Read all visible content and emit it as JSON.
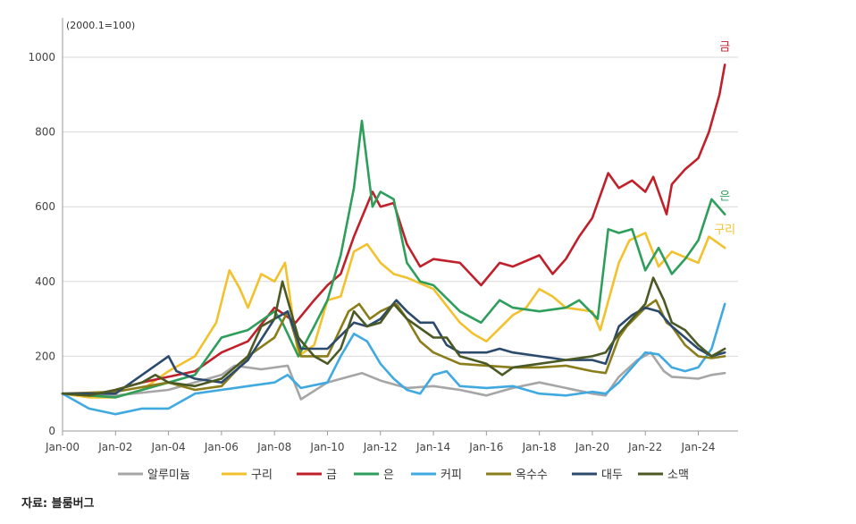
{
  "chart_data": {
    "type": "line",
    "unit_label": "(2000.1=100)",
    "ylim": [
      0,
      1000
    ],
    "xlim": [
      2000.0,
      2025.5
    ],
    "yticks": [
      "0",
      "200",
      "400",
      "600",
      "800",
      "1000"
    ],
    "ytick_values": [
      0,
      200,
      400,
      600,
      800,
      1000
    ],
    "xticks": [
      "Jan-00",
      "Jan-02",
      "Jan-04",
      "Jan-06",
      "Jan-08",
      "Jan-10",
      "Jan-12",
      "Jan-14",
      "Jan-16",
      "Jan-18",
      "Jan-20",
      "Jan-22",
      "Jan-24"
    ],
    "xtick_values": [
      2000,
      2002,
      2004,
      2006,
      2008,
      2010,
      2012,
      2014,
      2016,
      2018,
      2020,
      2022,
      2024
    ],
    "grid": "horizontal",
    "legend_position": "bottom",
    "series": [
      {
        "name": "알루미늄",
        "color": "#a6a6a6",
        "x": [
          2000,
          2002,
          2004,
          2006,
          2006.5,
          2007.5,
          2008.5,
          2009,
          2010,
          2011.3,
          2012,
          2013,
          2014,
          2015,
          2016,
          2017,
          2018,
          2019,
          2020,
          2020.5,
          2021,
          2021.7,
          2022.2,
          2022.7,
          2023,
          2024,
          2024.5,
          2025
        ],
        "y": [
          100,
          95,
          110,
          150,
          175,
          165,
          175,
          85,
          130,
          155,
          135,
          115,
          120,
          110,
          95,
          115,
          130,
          115,
          100,
          95,
          145,
          190,
          210,
          160,
          145,
          140,
          150,
          155
        ]
      },
      {
        "name": "구리",
        "color": "#f2c12e",
        "x": [
          2000,
          2001,
          2002,
          2003,
          2004,
          2005,
          2005.8,
          2006.3,
          2006.7,
          2007,
          2007.5,
          2008,
          2008.4,
          2008.9,
          2009.5,
          2010,
          2010.5,
          2011,
          2011.5,
          2012,
          2012.5,
          2013,
          2014,
          2015,
          2015.5,
          2016,
          2017,
          2017.5,
          2018,
          2018.5,
          2019,
          2020,
          2020.3,
          2021,
          2021.4,
          2022,
          2022.5,
          2023,
          2024,
          2024.4,
          2025
        ],
        "y": [
          100,
          90,
          90,
          110,
          160,
          200,
          290,
          430,
          380,
          330,
          420,
          400,
          450,
          200,
          230,
          350,
          360,
          480,
          500,
          450,
          420,
          410,
          380,
          290,
          260,
          240,
          310,
          330,
          380,
          360,
          330,
          320,
          270,
          450,
          510,
          530,
          440,
          480,
          450,
          520,
          490
        ]
      },
      {
        "name": "금",
        "color": "#c0202a",
        "x": [
          2000,
          2001,
          2002,
          2003,
          2004,
          2005,
          2006,
          2007,
          2008,
          2008.8,
          2009.5,
          2010,
          2010.5,
          2011,
          2011.7,
          2012,
          2012.5,
          2013,
          2013.5,
          2014,
          2015,
          2015.8,
          2016.5,
          2017,
          2018,
          2018.5,
          2019,
          2019.5,
          2020,
          2020.6,
          2021,
          2021.5,
          2022,
          2022.3,
          2022.8,
          2023,
          2023.5,
          2024,
          2024.4,
          2024.8,
          2025
        ],
        "y": [
          100,
          95,
          110,
          130,
          145,
          160,
          210,
          240,
          330,
          290,
          350,
          390,
          420,
          520,
          640,
          600,
          610,
          500,
          440,
          460,
          450,
          390,
          450,
          440,
          470,
          420,
          460,
          520,
          570,
          690,
          650,
          670,
          640,
          680,
          580,
          660,
          700,
          730,
          800,
          900,
          980
        ]
      },
      {
        "name": "은",
        "color": "#2e9e5b",
        "x": [
          2000,
          2002,
          2004,
          2005,
          2006,
          2006.5,
          2007,
          2008,
          2008.3,
          2008.9,
          2009.5,
          2010,
          2010.5,
          2011,
          2011.3,
          2011.7,
          2012,
          2012.5,
          2013,
          2013.5,
          2014,
          2015,
          2015.8,
          2016.5,
          2017,
          2018,
          2019,
          2019.5,
          2020.2,
          2020.6,
          2021,
          2021.5,
          2022,
          2022.5,
          2023,
          2023.5,
          2024,
          2024.5,
          2025
        ],
        "y": [
          100,
          90,
          130,
          150,
          250,
          260,
          270,
          320,
          290,
          200,
          280,
          350,
          470,
          650,
          830,
          600,
          640,
          620,
          450,
          400,
          390,
          320,
          290,
          350,
          330,
          320,
          330,
          350,
          300,
          540,
          530,
          540,
          430,
          490,
          420,
          460,
          510,
          620,
          580
        ]
      },
      {
        "name": "커피",
        "color": "#3fa9e0",
        "x": [
          2000,
          2001,
          2002,
          2003,
          2004,
          2005,
          2006,
          2007,
          2008,
          2008.5,
          2009,
          2010,
          2010.5,
          2011,
          2011.5,
          2012,
          2012.5,
          2013,
          2013.5,
          2014,
          2014.5,
          2015,
          2016,
          2017,
          2018,
          2019,
          2020,
          2020.5,
          2021,
          2021.5,
          2022,
          2022.5,
          2023,
          2023.5,
          2024,
          2024.5,
          2025
        ],
        "y": [
          100,
          60,
          45,
          60,
          60,
          100,
          110,
          120,
          130,
          150,
          115,
          130,
          200,
          260,
          240,
          180,
          140,
          110,
          100,
          150,
          160,
          120,
          115,
          120,
          100,
          95,
          105,
          100,
          130,
          170,
          210,
          205,
          170,
          160,
          170,
          220,
          340
        ]
      },
      {
        "name": "옥수수",
        "color": "#8a7d1a",
        "x": [
          2000,
          2002,
          2004,
          2005,
          2006,
          2006.8,
          2007,
          2008,
          2008.5,
          2009,
          2010,
          2010.8,
          2011.2,
          2011.6,
          2012,
          2012.6,
          2013,
          2013.5,
          2014,
          2015,
          2016,
          2017,
          2018,
          2019,
          2020,
          2020.5,
          2021,
          2021.3,
          2022,
          2022.4,
          2022.8,
          2023,
          2023.5,
          2024,
          2024.5,
          2025
        ],
        "y": [
          100,
          105,
          130,
          110,
          120,
          180,
          200,
          250,
          320,
          200,
          200,
          320,
          340,
          300,
          320,
          340,
          300,
          240,
          210,
          180,
          175,
          170,
          170,
          175,
          160,
          155,
          250,
          280,
          330,
          350,
          290,
          280,
          230,
          200,
          195,
          200
        ]
      },
      {
        "name": "대두",
        "color": "#2c4a6b",
        "x": [
          2000,
          2002,
          2004,
          2004.3,
          2005,
          2006,
          2007,
          2008,
          2008.5,
          2009,
          2010,
          2011,
          2011.5,
          2012,
          2012.6,
          2013,
          2013.5,
          2014,
          2014.5,
          2015,
          2016,
          2016.5,
          2017,
          2018,
          2019,
          2020,
          2020.5,
          2021,
          2021.5,
          2022,
          2022.5,
          2023,
          2023.5,
          2024,
          2024.5,
          2025
        ],
        "y": [
          100,
          100,
          200,
          160,
          140,
          130,
          190,
          300,
          320,
          220,
          220,
          290,
          280,
          300,
          350,
          320,
          290,
          290,
          230,
          210,
          210,
          220,
          210,
          200,
          190,
          190,
          180,
          280,
          310,
          330,
          320,
          280,
          250,
          220,
          200,
          210
        ]
      },
      {
        "name": "소맥",
        "color": "#4b5a24",
        "x": [
          2000,
          2001,
          2002,
          2003,
          2003.5,
          2004,
          2005,
          2006,
          2007,
          2007.5,
          2008,
          2008.3,
          2008.9,
          2009.5,
          2010,
          2010.5,
          2011,
          2011.5,
          2012,
          2012.5,
          2013,
          2014,
          2014.5,
          2015,
          2016,
          2016.6,
          2017,
          2018,
          2019,
          2020,
          2020.5,
          2021,
          2021.5,
          2022,
          2022.3,
          2022.7,
          2023,
          2023.5,
          2024,
          2024.5,
          2025
        ],
        "y": [
          100,
          95,
          110,
          130,
          150,
          130,
          120,
          140,
          200,
          280,
          300,
          400,
          250,
          200,
          180,
          220,
          320,
          280,
          290,
          340,
          300,
          250,
          250,
          200,
          180,
          150,
          170,
          180,
          190,
          200,
          210,
          260,
          300,
          340,
          410,
          350,
          290,
          270,
          230,
          200,
          220
        ]
      }
    ],
    "annotations": [
      {
        "text": "금",
        "series": "금"
      },
      {
        "text": "은",
        "series": "은"
      },
      {
        "text": "구리",
        "series": "구리"
      }
    ]
  },
  "source": "자료: 블룸버그"
}
